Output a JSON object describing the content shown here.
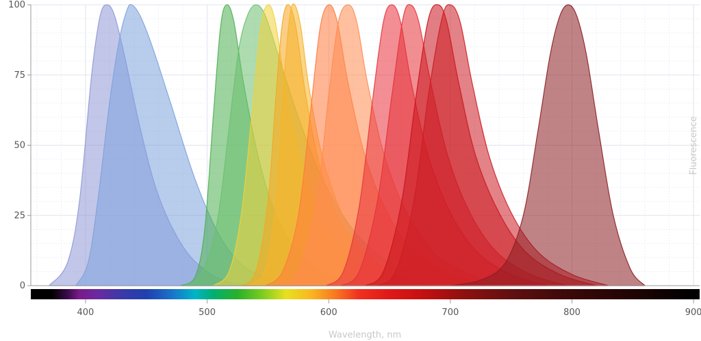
{
  "chart_data": {
    "type": "area",
    "xlabel": "Wavelength, nm",
    "ylabel": "Fluorescence",
    "xlim": [
      355,
      905
    ],
    "ylim": [
      0,
      100
    ],
    "x_ticks": [
      400,
      500,
      600,
      700,
      800,
      900
    ],
    "y_ticks": [
      0,
      25,
      50,
      75,
      100
    ],
    "grid": true,
    "spectrum_bar": true,
    "series": [
      {
        "peak_nm": 418,
        "color": "#8f98d6",
        "values": [
          [
            370,
            0
          ],
          [
            385,
            8
          ],
          [
            395,
            30
          ],
          [
            405,
            75
          ],
          [
            412,
            96
          ],
          [
            418,
            100
          ],
          [
            424,
            96
          ],
          [
            432,
            82
          ],
          [
            445,
            56
          ],
          [
            460,
            32
          ],
          [
            480,
            14
          ],
          [
            500,
            5
          ],
          [
            520,
            1
          ],
          [
            540,
            0
          ]
        ]
      },
      {
        "peak_nm": 438,
        "color": "#7ea2dc",
        "values": [
          [
            392,
            0
          ],
          [
            402,
            8
          ],
          [
            410,
            30
          ],
          [
            420,
            66
          ],
          [
            428,
            88
          ],
          [
            434,
            98
          ],
          [
            438,
            100
          ],
          [
            445,
            96
          ],
          [
            455,
            85
          ],
          [
            470,
            65
          ],
          [
            490,
            38
          ],
          [
            510,
            18
          ],
          [
            530,
            7
          ],
          [
            555,
            2
          ],
          [
            580,
            0
          ]
        ]
      },
      {
        "peak_nm": 516,
        "color": "#4caf50",
        "values": [
          [
            478,
            0
          ],
          [
            490,
            3
          ],
          [
            498,
            20
          ],
          [
            505,
            60
          ],
          [
            511,
            92
          ],
          [
            516,
            100
          ],
          [
            522,
            94
          ],
          [
            530,
            72
          ],
          [
            542,
            46
          ],
          [
            556,
            26
          ],
          [
            575,
            12
          ],
          [
            600,
            4
          ],
          [
            625,
            1
          ],
          [
            650,
            0
          ]
        ]
      },
      {
        "peak_nm": 540,
        "color": "#6cc070",
        "values": [
          [
            482,
            0
          ],
          [
            495,
            4
          ],
          [
            508,
            22
          ],
          [
            518,
            56
          ],
          [
            526,
            84
          ],
          [
            533,
            96
          ],
          [
            540,
            100
          ],
          [
            548,
            96
          ],
          [
            560,
            80
          ],
          [
            575,
            60
          ],
          [
            595,
            38
          ],
          [
            620,
            20
          ],
          [
            650,
            8
          ],
          [
            690,
            2
          ],
          [
            720,
            0
          ]
        ]
      },
      {
        "peak_nm": 550,
        "color": "#f2d23a",
        "values": [
          [
            505,
            0
          ],
          [
            518,
            5
          ],
          [
            528,
            25
          ],
          [
            537,
            62
          ],
          [
            544,
            92
          ],
          [
            550,
            100
          ],
          [
            556,
            94
          ],
          [
            564,
            72
          ],
          [
            576,
            46
          ],
          [
            592,
            26
          ],
          [
            612,
            12
          ],
          [
            640,
            4
          ],
          [
            665,
            0
          ]
        ]
      },
      {
        "peak_nm": 567,
        "color": "#f5a623",
        "values": [
          [
            528,
            0
          ],
          [
            540,
            5
          ],
          [
            550,
            30
          ],
          [
            557,
            70
          ],
          [
            562,
            94
          ],
          [
            567,
            100
          ],
          [
            573,
            92
          ],
          [
            581,
            68
          ],
          [
            593,
            42
          ],
          [
            610,
            22
          ],
          [
            635,
            9
          ],
          [
            665,
            2
          ],
          [
            690,
            0
          ]
        ]
      },
      {
        "peak_nm": 572,
        "color": "#f6b42a",
        "values": [
          [
            535,
            0
          ],
          [
            548,
            6
          ],
          [
            557,
            32
          ],
          [
            563,
            72
          ],
          [
            568,
            96
          ],
          [
            572,
            100
          ],
          [
            577,
            92
          ],
          [
            584,
            70
          ],
          [
            596,
            44
          ],
          [
            615,
            22
          ],
          [
            640,
            8
          ],
          [
            670,
            2
          ],
          [
            690,
            0
          ]
        ]
      },
      {
        "peak_nm": 600,
        "color": "#ff7a3d",
        "values": [
          [
            548,
            0
          ],
          [
            562,
            5
          ],
          [
            575,
            25
          ],
          [
            585,
            62
          ],
          [
            593,
            92
          ],
          [
            600,
            100
          ],
          [
            607,
            94
          ],
          [
            616,
            72
          ],
          [
            630,
            46
          ],
          [
            648,
            26
          ],
          [
            670,
            12
          ],
          [
            700,
            4
          ],
          [
            730,
            0
          ]
        ]
      },
      {
        "peak_nm": 616,
        "color": "#ff8c52",
        "values": [
          [
            560,
            0
          ],
          [
            575,
            5
          ],
          [
            590,
            30
          ],
          [
            600,
            68
          ],
          [
            608,
            94
          ],
          [
            616,
            100
          ],
          [
            623,
            94
          ],
          [
            632,
            72
          ],
          [
            646,
            46
          ],
          [
            664,
            26
          ],
          [
            686,
            12
          ],
          [
            715,
            4
          ],
          [
            745,
            0
          ]
        ]
      },
      {
        "peak_nm": 652,
        "color": "#e8323c",
        "values": [
          [
            598,
            0
          ],
          [
            612,
            5
          ],
          [
            625,
            28
          ],
          [
            636,
            66
          ],
          [
            645,
            94
          ],
          [
            652,
            100
          ],
          [
            659,
            94
          ],
          [
            668,
            72
          ],
          [
            682,
            46
          ],
          [
            700,
            26
          ],
          [
            722,
            12
          ],
          [
            750,
            4
          ],
          [
            780,
            0
          ]
        ]
      },
      {
        "peak_nm": 667,
        "color": "#e63238",
        "values": [
          [
            610,
            0
          ],
          [
            625,
            5
          ],
          [
            640,
            30
          ],
          [
            652,
            68
          ],
          [
            661,
            95
          ],
          [
            667,
            100
          ],
          [
            674,
            94
          ],
          [
            684,
            72
          ],
          [
            698,
            46
          ],
          [
            716,
            26
          ],
          [
            738,
            12
          ],
          [
            766,
            4
          ],
          [
            796,
            0
          ]
        ]
      },
      {
        "peak_nm": 690,
        "color": "#c8141e",
        "values": [
          [
            630,
            0
          ],
          [
            645,
            5
          ],
          [
            660,
            30
          ],
          [
            672,
            68
          ],
          [
            682,
            95
          ],
          [
            690,
            100
          ],
          [
            697,
            94
          ],
          [
            707,
            72
          ],
          [
            721,
            46
          ],
          [
            740,
            26
          ],
          [
            762,
            12
          ],
          [
            790,
            4
          ],
          [
            820,
            0
          ]
        ]
      },
      {
        "peak_nm": 700,
        "color": "#cc1e24",
        "values": [
          [
            640,
            0
          ],
          [
            655,
            5
          ],
          [
            670,
            30
          ],
          [
            682,
            68
          ],
          [
            693,
            95
          ],
          [
            700,
            100
          ],
          [
            708,
            94
          ],
          [
            718,
            72
          ],
          [
            732,
            46
          ],
          [
            750,
            26
          ],
          [
            772,
            12
          ],
          [
            800,
            4
          ],
          [
            830,
            0
          ]
        ]
      },
      {
        "peak_nm": 797,
        "color": "#8b1e23",
        "values": [
          [
            700,
            0
          ],
          [
            725,
            2
          ],
          [
            745,
            8
          ],
          [
            760,
            25
          ],
          [
            772,
            55
          ],
          [
            782,
            82
          ],
          [
            790,
            96
          ],
          [
            797,
            100
          ],
          [
            804,
            96
          ],
          [
            812,
            82
          ],
          [
            822,
            55
          ],
          [
            834,
            25
          ],
          [
            848,
            6
          ],
          [
            860,
            0
          ]
        ]
      }
    ]
  }
}
